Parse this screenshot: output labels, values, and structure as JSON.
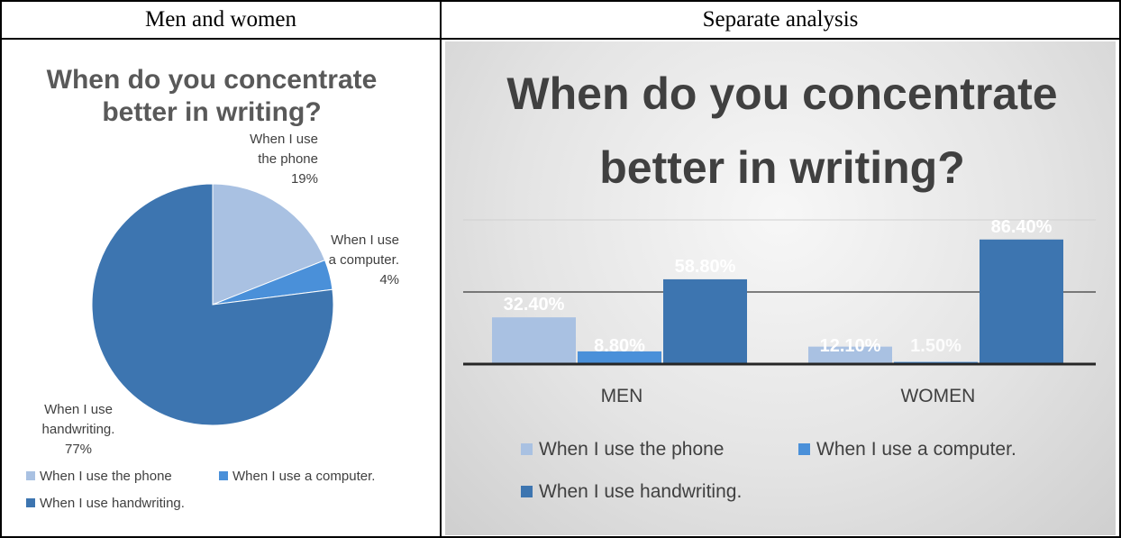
{
  "table": {
    "headers": [
      "Men and women",
      "Separate analysis"
    ]
  },
  "colors": {
    "phone": "#a9c1e2",
    "computer": "#4a90d9",
    "handwriting": "#3d75b0"
  },
  "chart_data": [
    {
      "type": "pie",
      "title_lines": [
        "When do you concentrate",
        "better in writing?"
      ],
      "slices": [
        {
          "label_lines": [
            "When I use",
            "the phone",
            "19%"
          ],
          "value": 19,
          "legend": "When I use the phone"
        },
        {
          "label_lines": [
            "When I use",
            "a computer.",
            "4%"
          ],
          "value": 4,
          "legend": "When I use a computer."
        },
        {
          "label_lines": [
            "When I use",
            "handwriting.",
            "77%"
          ],
          "value": 77,
          "legend": "When I use handwriting."
        }
      ]
    },
    {
      "type": "bar",
      "title_lines": [
        "When do you concentrate",
        "better in writing?"
      ],
      "categories": [
        "MEN",
        "WOMEN"
      ],
      "series": [
        {
          "name": "When I use the phone",
          "values": [
            32.4,
            12.1
          ],
          "labels": [
            "32.40%",
            "12.10%"
          ]
        },
        {
          "name": "When I use a computer.",
          "values": [
            8.8,
            1.5
          ],
          "labels": [
            "8.80%",
            "1.50%"
          ]
        },
        {
          "name": "When I use handwriting.",
          "values": [
            58.8,
            86.4
          ],
          "labels": [
            "58.80%",
            "86.40%"
          ]
        }
      ],
      "ylim": [
        0,
        100
      ],
      "gridlines": true,
      "legend_position": "bottom"
    }
  ]
}
